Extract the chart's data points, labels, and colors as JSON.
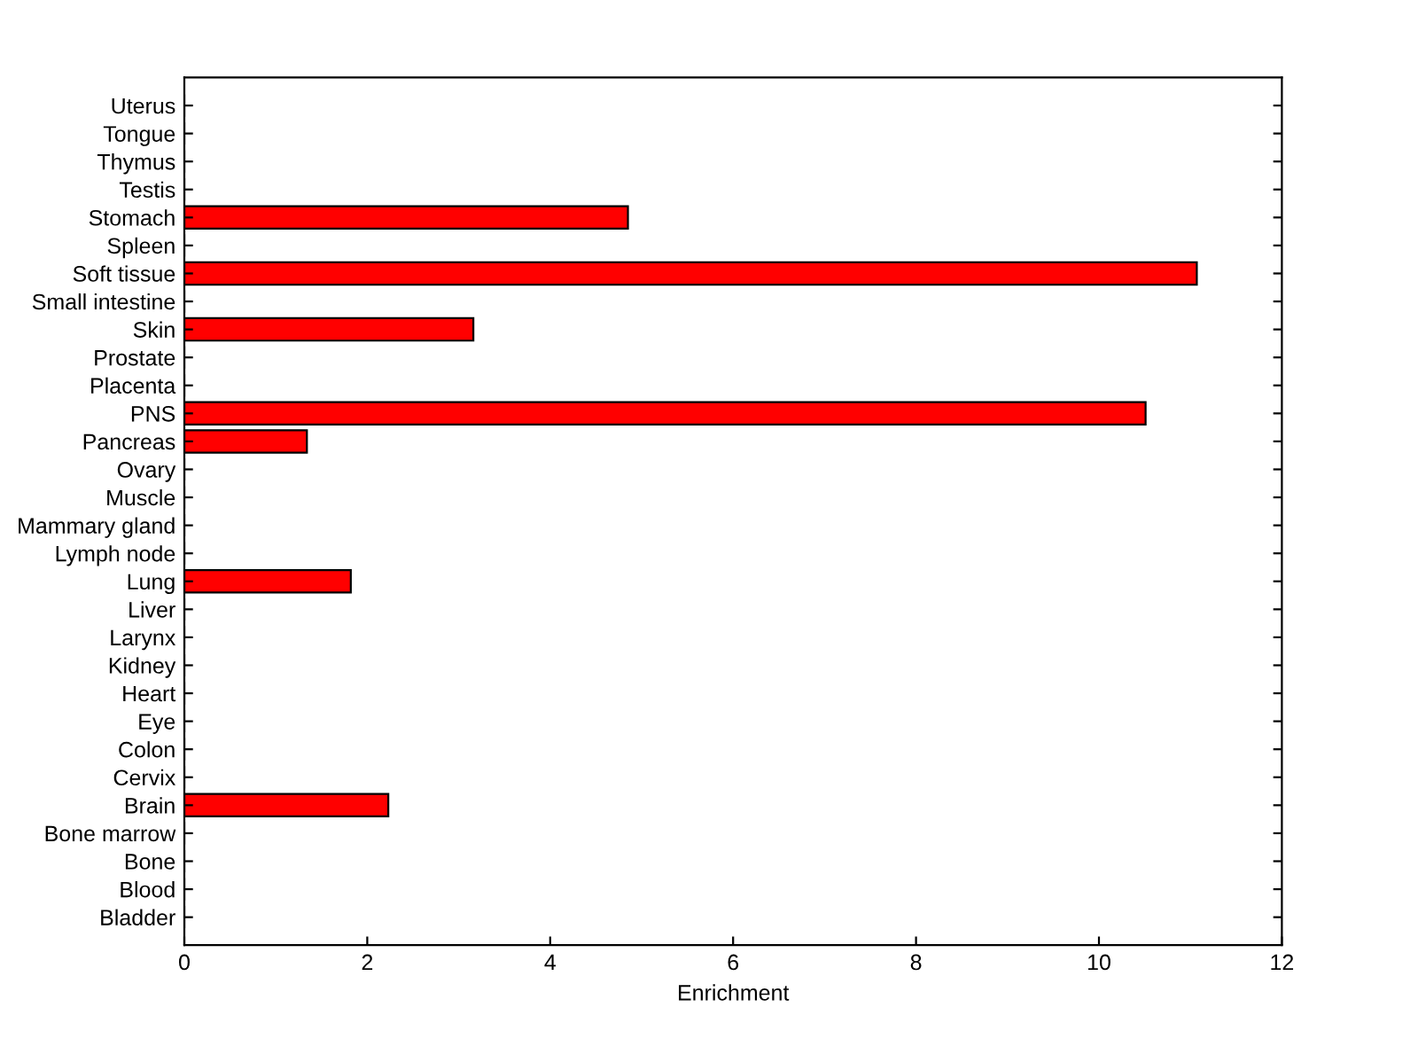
{
  "chart_data": {
    "type": "bar",
    "orientation": "horizontal",
    "xlabel": "Enrichment",
    "categories": [
      "Uterus",
      "Tongue",
      "Thymus",
      "Testis",
      "Stomach",
      "Spleen",
      "Soft tissue",
      "Small intestine",
      "Skin",
      "Prostate",
      "Placenta",
      "PNS",
      "Pancreas",
      "Ovary",
      "Muscle",
      "Mammary gland",
      "Lymph node",
      "Lung",
      "Liver",
      "Larynx",
      "Kidney",
      "Heart",
      "Eye",
      "Colon",
      "Cervix",
      "Brain",
      "Bone marrow",
      "Bone",
      "Blood",
      "Bladder"
    ],
    "values": [
      0,
      0,
      0,
      0,
      4.85,
      0,
      11.07,
      0,
      3.16,
      0,
      0,
      10.51,
      1.34,
      0,
      0,
      0,
      0,
      1.82,
      0,
      0,
      0,
      0,
      0,
      0,
      0,
      2.23,
      0,
      0,
      0,
      0
    ],
    "color": "#ff0000",
    "xlim": [
      0,
      12
    ],
    "xticks": [
      0,
      2,
      4,
      6,
      8,
      10,
      12
    ],
    "grid": false,
    "legend": false
  }
}
